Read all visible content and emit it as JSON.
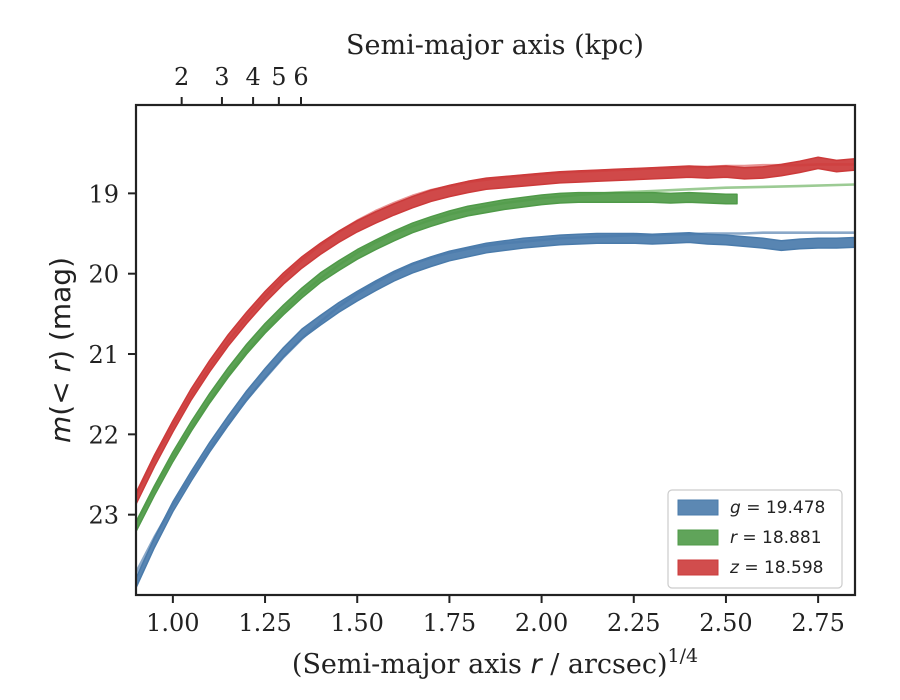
{
  "chart_data": {
    "type": "line",
    "xlabel_main": "(Semi-major axis ",
    "xlabel_var": "r",
    "xlabel_tail": " / arcsec)",
    "xlabel_sup": "1/4",
    "xlabel_top": "Semi-major axis (kpc)",
    "ylabel_m": "m",
    "ylabel_mid": "(< ",
    "ylabel_r": "r",
    "ylabel_end": ") (mag)",
    "xlim": [
      0.9,
      2.85
    ],
    "ylim": [
      24.0,
      17.9
    ],
    "y_inverted": true,
    "x_ticks": [
      1.0,
      1.25,
      1.5,
      1.75,
      2.0,
      2.25,
      2.5,
      2.75
    ],
    "x_tick_labels": [
      "1.00",
      "1.25",
      "1.50",
      "1.75",
      "2.00",
      "2.25",
      "2.50",
      "2.75"
    ],
    "y_ticks": [
      19,
      20,
      21,
      22,
      23
    ],
    "y_tick_labels": [
      "19",
      "20",
      "21",
      "22",
      "23"
    ],
    "top_ticks_kpc": [
      2,
      3,
      4,
      5,
      6
    ],
    "top_tick_labels": [
      "2",
      "3",
      "4",
      "5",
      "6"
    ],
    "kpc_per_arcsec_scale": 1.82,
    "grid": false,
    "legend_position": "bottom-right",
    "series": [
      {
        "name": "g",
        "value": "19.478",
        "color": "#4a7bab",
        "model_color": "#8aa8c8",
        "band_width_mag": 0.06,
        "x": [
          0.9,
          0.95,
          1.0,
          1.05,
          1.1,
          1.15,
          1.2,
          1.25,
          1.3,
          1.35,
          1.4,
          1.45,
          1.5,
          1.55,
          1.6,
          1.65,
          1.7,
          1.75,
          1.8,
          1.85,
          1.9,
          1.95,
          2.0,
          2.05,
          2.1,
          2.15,
          2.2,
          2.25,
          2.3,
          2.35,
          2.4,
          2.45,
          2.5,
          2.55,
          2.6,
          2.65,
          2.7,
          2.75,
          2.8,
          2.85
        ],
        "y": [
          23.85,
          23.35,
          22.9,
          22.52,
          22.16,
          21.83,
          21.52,
          21.24,
          20.98,
          20.75,
          20.58,
          20.42,
          20.28,
          20.15,
          20.03,
          19.93,
          19.85,
          19.78,
          19.73,
          19.68,
          19.65,
          19.62,
          19.6,
          19.58,
          19.57,
          19.56,
          19.56,
          19.56,
          19.57,
          19.56,
          19.55,
          19.57,
          19.58,
          19.6,
          19.62,
          19.65,
          19.63,
          19.62,
          19.62,
          19.61
        ],
        "model_y": [
          23.72,
          23.28,
          22.88,
          22.52,
          22.18,
          21.86,
          21.57,
          21.3,
          21.04,
          20.81,
          20.6,
          20.41,
          20.25,
          20.11,
          19.99,
          19.88,
          19.8,
          19.74,
          19.69,
          19.65,
          19.62,
          19.6,
          19.58,
          19.56,
          19.55,
          19.54,
          19.53,
          19.52,
          19.52,
          19.51,
          19.51,
          19.5,
          19.5,
          19.5,
          19.49,
          19.49,
          19.49,
          19.49,
          19.49,
          19.49
        ]
      },
      {
        "name": "r",
        "value": "18.881",
        "color": "#4f9a48",
        "model_color": "#9ccb94",
        "band_width_mag": 0.06,
        "x": [
          0.9,
          0.95,
          1.0,
          1.05,
          1.1,
          1.15,
          1.2,
          1.25,
          1.3,
          1.35,
          1.4,
          1.45,
          1.5,
          1.55,
          1.6,
          1.65,
          1.7,
          1.75,
          1.8,
          1.85,
          1.9,
          1.95,
          2.0,
          2.05,
          2.1,
          2.15,
          2.2,
          2.25,
          2.3,
          2.35,
          2.4,
          2.45,
          2.5,
          2.53
        ],
        "y": [
          23.15,
          22.7,
          22.28,
          21.9,
          21.55,
          21.23,
          20.94,
          20.68,
          20.45,
          20.24,
          20.05,
          19.9,
          19.76,
          19.64,
          19.53,
          19.43,
          19.35,
          19.28,
          19.22,
          19.18,
          19.14,
          19.11,
          19.08,
          19.06,
          19.05,
          19.05,
          19.05,
          19.05,
          19.05,
          19.06,
          19.05,
          19.06,
          19.07,
          19.07
        ],
        "model_x": [
          0.9,
          0.95,
          1.0,
          1.05,
          1.1,
          1.15,
          1.2,
          1.25,
          1.3,
          1.35,
          1.4,
          1.45,
          1.5,
          1.55,
          1.6,
          1.65,
          1.7,
          1.75,
          1.8,
          1.85,
          1.9,
          1.95,
          2.0,
          2.1,
          2.2,
          2.3,
          2.4,
          2.5,
          2.6,
          2.7,
          2.85
        ],
        "model_y": [
          23.1,
          22.68,
          22.28,
          21.92,
          21.58,
          21.26,
          20.97,
          20.71,
          20.47,
          20.25,
          20.06,
          19.89,
          19.74,
          19.61,
          19.5,
          19.41,
          19.33,
          19.26,
          19.21,
          19.16,
          19.12,
          19.09,
          19.06,
          19.02,
          18.99,
          18.97,
          18.95,
          18.93,
          18.92,
          18.91,
          18.89
        ]
      },
      {
        "name": "z",
        "value": "18.598",
        "color": "#cc3a3a",
        "model_color": "#e89494",
        "band_width_mag": 0.07,
        "x": [
          0.9,
          0.95,
          1.0,
          1.05,
          1.1,
          1.15,
          1.2,
          1.25,
          1.3,
          1.35,
          1.4,
          1.45,
          1.5,
          1.55,
          1.6,
          1.65,
          1.7,
          1.75,
          1.8,
          1.85,
          1.9,
          1.95,
          2.0,
          2.05,
          2.1,
          2.15,
          2.2,
          2.25,
          2.3,
          2.35,
          2.4,
          2.45,
          2.5,
          2.55,
          2.6,
          2.65,
          2.7,
          2.75,
          2.8,
          2.85
        ],
        "y": [
          22.8,
          22.33,
          21.9,
          21.5,
          21.15,
          20.83,
          20.55,
          20.29,
          20.06,
          19.86,
          19.69,
          19.54,
          19.41,
          19.3,
          19.2,
          19.11,
          19.03,
          18.97,
          18.92,
          18.88,
          18.86,
          18.84,
          18.82,
          18.8,
          18.79,
          18.78,
          18.77,
          18.76,
          18.75,
          18.74,
          18.73,
          18.74,
          18.73,
          18.75,
          18.74,
          18.71,
          18.67,
          18.62,
          18.66,
          18.64
        ],
        "model_y": [
          22.75,
          22.3,
          21.89,
          21.51,
          21.16,
          20.84,
          20.55,
          20.28,
          20.04,
          19.83,
          19.64,
          19.48,
          19.34,
          19.22,
          19.12,
          19.03,
          18.96,
          18.91,
          18.86,
          18.83,
          18.8,
          18.78,
          18.76,
          18.74,
          18.73,
          18.72,
          18.71,
          18.7,
          18.69,
          18.68,
          18.67,
          18.67,
          18.66,
          18.66,
          18.65,
          18.65,
          18.65,
          18.64,
          18.64,
          18.64
        ]
      }
    ]
  }
}
